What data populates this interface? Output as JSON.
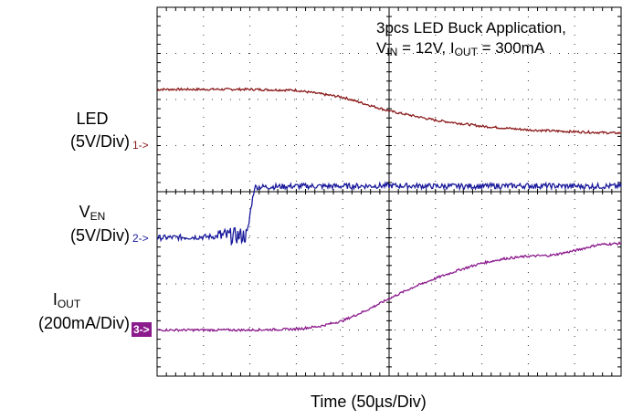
{
  "chart_data": {
    "type": "line",
    "title": "",
    "annotation": {
      "line1": "3pcs LED Buck Application,",
      "vin_symbol": "V",
      "vin_sub": "IN",
      "vin_value": " = 12V, ",
      "iout_symbol": "I",
      "iout_sub": "OUT",
      "iout_value": " = 300mA"
    },
    "xlabel": "Time  (50µs/Div)",
    "grid": true,
    "divisions": {
      "x": 10,
      "y": 8
    },
    "series": [
      {
        "name": "LED",
        "scale": "(5V/Div)",
        "marker": "1->",
        "color": "#8b1a1a",
        "x_div": [
          0,
          1,
          2,
          3,
          4,
          5,
          6,
          7,
          8,
          9,
          10
        ],
        "y_div": [
          6.22,
          6.22,
          6.22,
          6.2,
          6.05,
          5.75,
          5.55,
          5.42,
          5.34,
          5.3,
          5.27
        ]
      },
      {
        "name": "V",
        "name_sub": "EN",
        "scale": "(5V/Div)",
        "marker": "2->",
        "color": "#1a1a9c",
        "x_div": [
          0,
          1,
          1.95,
          2.0,
          2.1,
          3,
          4,
          5,
          6,
          7,
          8,
          9,
          10
        ],
        "y_div": [
          3.0,
          3.02,
          3.05,
          3.5,
          4.1,
          4.12,
          4.12,
          4.13,
          4.12,
          4.12,
          4.13,
          4.12,
          4.12
        ]
      },
      {
        "name": "I",
        "name_sub": "OUT",
        "scale": "(200mA/Div)",
        "marker": "3->",
        "color": "#8b1a8c",
        "x_div": [
          0,
          1,
          2,
          3,
          3.5,
          4,
          4.5,
          5,
          5.5,
          6,
          6.5,
          7,
          7.5,
          8,
          8.5,
          9,
          9.5,
          10
        ],
        "y_div": [
          1.0,
          1.0,
          1.0,
          1.02,
          1.08,
          1.2,
          1.42,
          1.68,
          1.92,
          2.12,
          2.3,
          2.45,
          2.55,
          2.6,
          2.62,
          2.72,
          2.85,
          2.88
        ]
      }
    ]
  }
}
